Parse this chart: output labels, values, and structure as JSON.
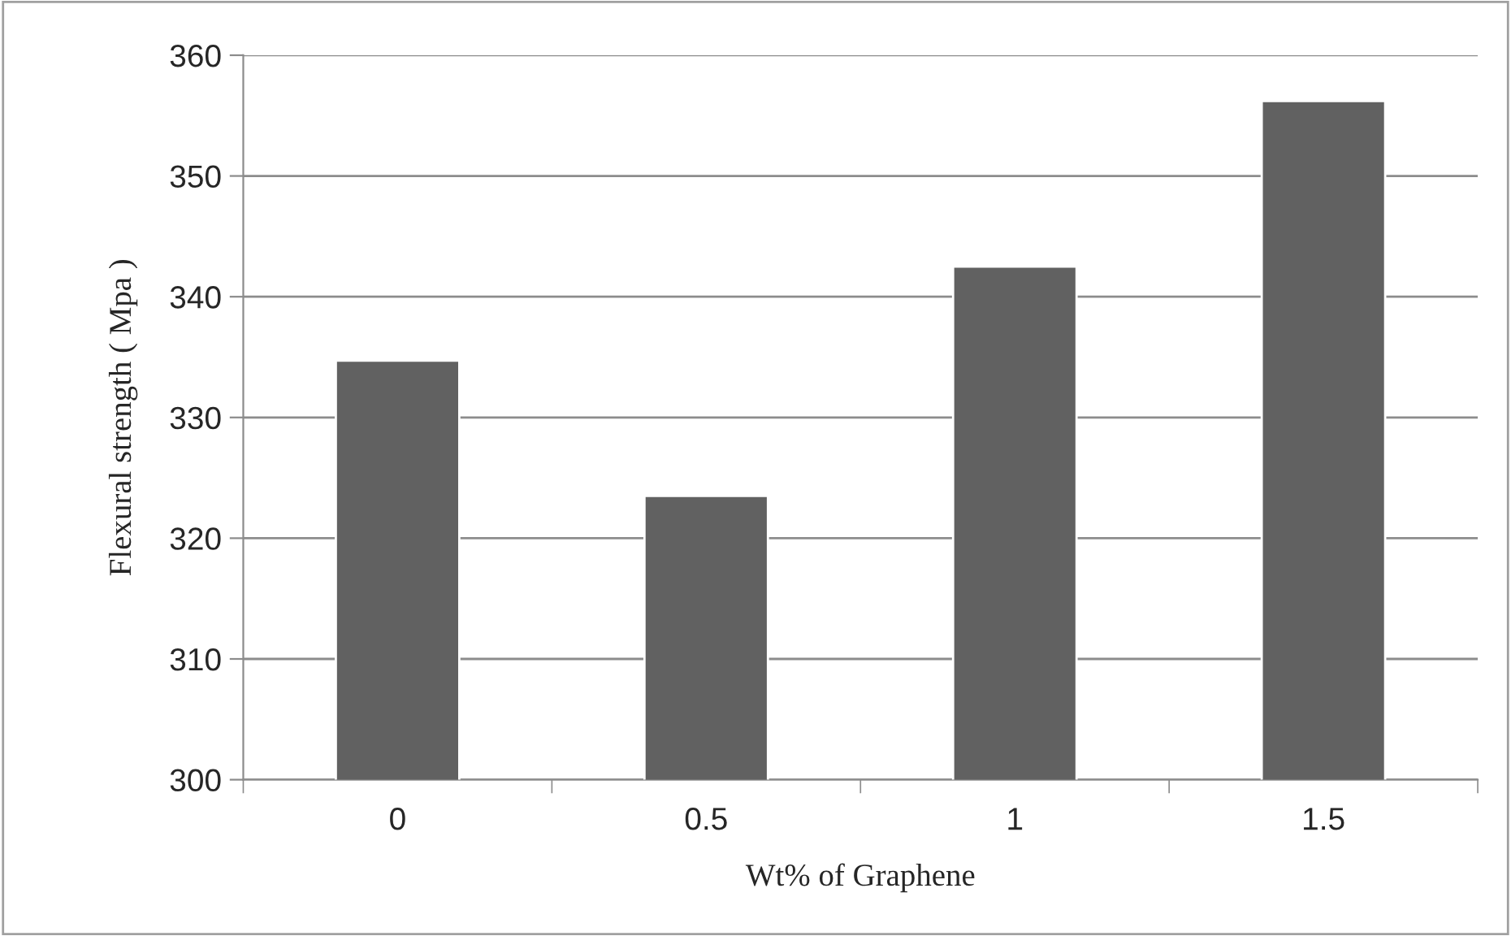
{
  "chart_data": {
    "type": "bar",
    "xlabel": "Wt% of Graphene",
    "ylabel": "Flexural strength ( Mpa )",
    "categories": [
      "0",
      "0.5",
      "1",
      "1.5"
    ],
    "values": [
      334.7,
      323.5,
      342.5,
      356.2
    ],
    "color": "#616161",
    "ylim": [
      300,
      360
    ],
    "yticks": [
      300,
      310,
      320,
      330,
      340,
      350,
      360
    ],
    "grid": "y",
    "legend": false
  }
}
